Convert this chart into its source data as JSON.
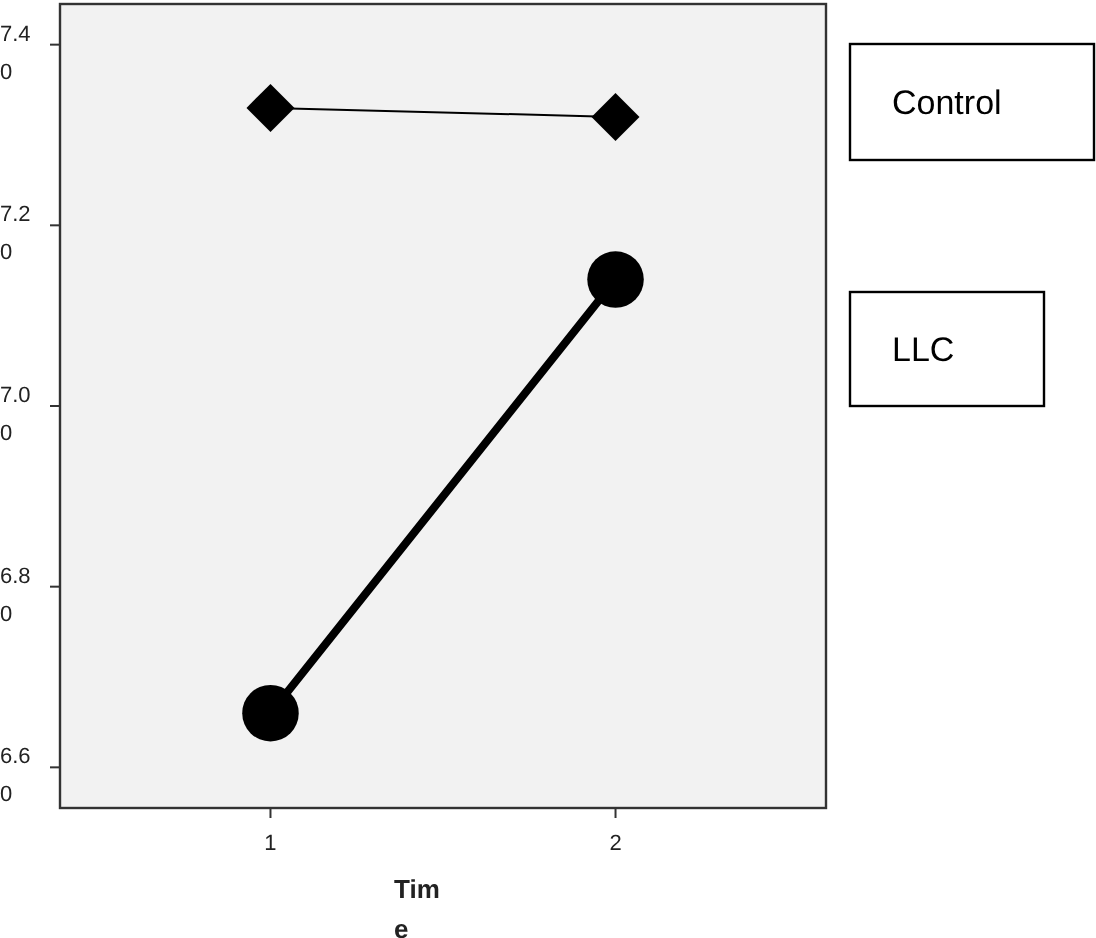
{
  "chart_data": {
    "type": "line",
    "xlabel": "Time",
    "x": [
      1,
      2
    ],
    "series": [
      {
        "name": "Control",
        "color": "#000000",
        "values": [
          7.33,
          7.32
        ],
        "marker": "diamond"
      },
      {
        "name": "LLC",
        "color": "#000000",
        "values": [
          6.66,
          7.14
        ],
        "marker": "circle"
      }
    ],
    "xlim": [
      0.39,
      2.61
    ],
    "xticks": [
      1,
      2
    ],
    "ylim": [
      6.555,
      7.445
    ],
    "yticks": [
      {
        "value": 6.6,
        "label": "6.60"
      },
      {
        "value": 6.8,
        "label": "6.80"
      },
      {
        "value": 7.0,
        "label": "7.00"
      },
      {
        "value": 7.2,
        "label": "7.20"
      },
      {
        "value": 7.4,
        "label": "7.40"
      }
    ],
    "legend": "right",
    "grid": false,
    "line_style": "solid"
  }
}
